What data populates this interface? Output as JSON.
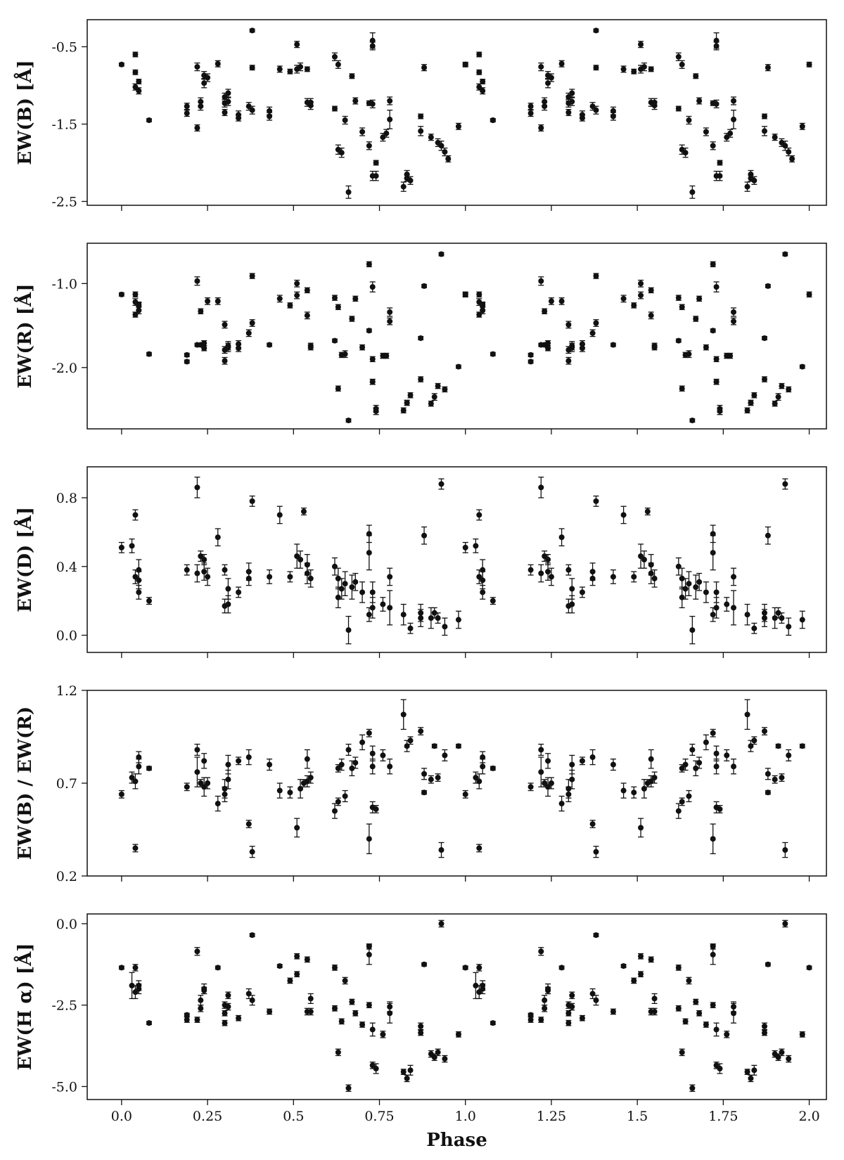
{
  "chart_data": {
    "type": "scatter",
    "xlabel": "Phase",
    "xlim": [
      -0.1,
      2.05
    ],
    "xticks": [
      0.0,
      0.25,
      0.5,
      0.75,
      1.0,
      1.25,
      1.5,
      1.75,
      2.0
    ],
    "xtick_labels": [
      "0.0",
      "0.25",
      "0.5",
      "0.75",
      "1.0",
      "1.25",
      "1.5",
      "1.75",
      "2.0"
    ],
    "repeat_period": 1.0,
    "panels": [
      {
        "ylabel": "EW(B) [Å]",
        "ylim": [
          -2.55,
          -0.15
        ],
        "yticks": [
          -0.5,
          -1.5,
          -2.5
        ],
        "ytick_labels": [
          "-0.5",
          "-1.5",
          "-2.5"
        ],
        "x": [
          0.0,
          0.04,
          0.04,
          0.04,
          0.05,
          0.05,
          0.08,
          0.19,
          0.19,
          0.22,
          0.22,
          0.23,
          0.23,
          0.24,
          0.24,
          0.25,
          0.28,
          0.3,
          0.3,
          0.3,
          0.31,
          0.31,
          0.34,
          0.34,
          0.38,
          0.38,
          0.37,
          0.38,
          0.43,
          0.43,
          0.46,
          0.49,
          0.51,
          0.51,
          0.52,
          0.54,
          0.54,
          0.55,
          0.55,
          0.62,
          0.62,
          0.63,
          0.63,
          0.64,
          0.65,
          0.66,
          0.67,
          0.68,
          0.7,
          0.72,
          0.72,
          0.73,
          0.73,
          0.73,
          0.73,
          0.74,
          0.74,
          0.76,
          0.77,
          0.78,
          0.78,
          0.82,
          0.83,
          0.83,
          0.84,
          0.87,
          0.87,
          0.88,
          0.9,
          0.92,
          0.93,
          0.94,
          0.95,
          0.98,
          1.0,
          1.08
        ],
        "y": [
          -0.73,
          -0.6,
          -0.83,
          -1.02,
          -0.95,
          -1.07,
          -1.45,
          -1.27,
          -1.36,
          -0.76,
          -1.55,
          -1.21,
          -1.27,
          -0.87,
          -0.97,
          -0.9,
          -0.72,
          -1.15,
          -1.23,
          -1.35,
          -1.1,
          -1.21,
          -1.38,
          -1.42,
          -0.29,
          -0.77,
          -1.27,
          -1.32,
          -1.33,
          -1.4,
          -0.79,
          -0.82,
          -0.79,
          -0.47,
          -0.76,
          -0.79,
          -1.22,
          -1.26,
          -1.22,
          -1.3,
          -0.63,
          -0.73,
          -1.83,
          -1.87,
          -1.45,
          -2.38,
          -0.88,
          -1.2,
          -1.6,
          -1.78,
          -1.23,
          -0.42,
          -0.49,
          -1.24,
          -2.17,
          -2.17,
          -2.0,
          -1.67,
          -1.62,
          -1.2,
          -1.44,
          -2.31,
          -2.2,
          -2.15,
          -2.23,
          -1.59,
          -1.4,
          -0.77,
          -1.67,
          -1.74,
          -1.78,
          -1.86,
          -1.95,
          -1.53,
          -0.73,
          -1.45
        ],
        "err": [
          0.02,
          0.03,
          0.03,
          0.04,
          0.03,
          0.04,
          0.02,
          0.04,
          0.04,
          0.05,
          0.04,
          0.05,
          0.05,
          0.05,
          0.06,
          0.05,
          0.04,
          0.05,
          0.05,
          0.04,
          0.05,
          0.05,
          0.05,
          0.04,
          0.02,
          0.03,
          0.05,
          0.05,
          0.05,
          0.05,
          0.04,
          0.03,
          0.05,
          0.04,
          0.05,
          0.03,
          0.05,
          0.05,
          0.05,
          0.03,
          0.05,
          0.05,
          0.06,
          0.06,
          0.05,
          0.08,
          0.03,
          0.04,
          0.05,
          0.05,
          0.03,
          0.1,
          0.05,
          0.05,
          0.06,
          0.06,
          0.03,
          0.05,
          0.05,
          0.05,
          0.12,
          0.06,
          0.04,
          0.05,
          0.05,
          0.06,
          0.03,
          0.04,
          0.04,
          0.05,
          0.06,
          0.05,
          0.04,
          0.04,
          0.03,
          0.02
        ]
      },
      {
        "ylabel": "EW(R) [Å]",
        "ylim": [
          -2.73,
          -0.52
        ],
        "yticks": [
          -1.0,
          -2.0
        ],
        "ytick_labels": [
          "-1.0",
          "-2.0"
        ],
        "x": [
          0.0,
          0.04,
          0.04,
          0.04,
          0.05,
          0.05,
          0.05,
          0.08,
          0.19,
          0.19,
          0.22,
          0.22,
          0.23,
          0.23,
          0.24,
          0.24,
          0.25,
          0.28,
          0.3,
          0.3,
          0.3,
          0.31,
          0.31,
          0.34,
          0.34,
          0.37,
          0.38,
          0.38,
          0.43,
          0.46,
          0.49,
          0.51,
          0.51,
          0.54,
          0.54,
          0.55,
          0.55,
          0.62,
          0.62,
          0.63,
          0.63,
          0.64,
          0.65,
          0.66,
          0.67,
          0.68,
          0.7,
          0.72,
          0.72,
          0.73,
          0.73,
          0.73,
          0.73,
          0.74,
          0.74,
          0.76,
          0.77,
          0.78,
          0.78,
          0.82,
          0.83,
          0.83,
          0.84,
          0.87,
          0.87,
          0.88,
          0.9,
          0.91,
          0.92,
          0.93,
          0.94,
          0.98,
          1.0
        ],
        "y": [
          -1.13,
          -1.37,
          -1.13,
          -1.22,
          -1.27,
          -1.25,
          -1.32,
          -1.84,
          -1.85,
          -1.93,
          -0.97,
          -1.73,
          -1.73,
          -1.33,
          -1.77,
          -1.71,
          -1.21,
          -1.21,
          -1.49,
          -1.79,
          -1.92,
          -1.76,
          -1.74,
          -1.77,
          -1.72,
          -1.59,
          -1.47,
          -0.91,
          -1.73,
          -1.18,
          -1.26,
          -1.14,
          -1.0,
          -1.08,
          -1.38,
          -1.74,
          -1.76,
          -1.68,
          -1.17,
          -1.28,
          -2.25,
          -1.85,
          -1.84,
          -2.63,
          -1.42,
          -1.18,
          -1.76,
          -1.56,
          -0.77,
          -1.04,
          -1.9,
          -2.17,
          -2.17,
          -2.52,
          -2.49,
          -1.86,
          -1.86,
          -1.34,
          -1.45,
          -2.51,
          -2.42,
          -2.42,
          -2.33,
          -2.14,
          -1.65,
          -1.03,
          -2.43,
          -2.35,
          -2.22,
          -0.65,
          -2.26,
          -1.99,
          -1.13
        ],
        "err": [
          0.02,
          0.03,
          0.03,
          0.04,
          0.04,
          0.03,
          0.04,
          0.02,
          0.02,
          0.02,
          0.05,
          0.02,
          0.02,
          0.03,
          0.03,
          0.03,
          0.04,
          0.04,
          0.04,
          0.04,
          0.04,
          0.05,
          0.05,
          0.04,
          0.04,
          0.04,
          0.04,
          0.03,
          0.02,
          0.04,
          0.03,
          0.04,
          0.04,
          0.03,
          0.04,
          0.03,
          0.03,
          0.02,
          0.03,
          0.03,
          0.03,
          0.03,
          0.04,
          0.02,
          0.03,
          0.03,
          0.03,
          0.02,
          0.03,
          0.06,
          0.03,
          0.03,
          0.03,
          0.04,
          0.04,
          0.03,
          0.03,
          0.05,
          0.04,
          0.03,
          0.03,
          0.03,
          0.03,
          0.03,
          0.02,
          0.02,
          0.03,
          0.04,
          0.03,
          0.02,
          0.03,
          0.02,
          0.03
        ]
      },
      {
        "ylabel": "EW(D) [Å]",
        "ylim": [
          -0.1,
          0.98
        ],
        "yticks": [
          0.0,
          0.4,
          0.8
        ],
        "ytick_labels": [
          "0.0",
          "0.4",
          "0.8"
        ],
        "x": [
          0.0,
          0.03,
          0.04,
          0.04,
          0.05,
          0.05,
          0.05,
          0.08,
          0.19,
          0.22,
          0.22,
          0.23,
          0.24,
          0.24,
          0.25,
          0.28,
          0.3,
          0.3,
          0.31,
          0.31,
          0.34,
          0.37,
          0.37,
          0.38,
          0.43,
          0.46,
          0.49,
          0.51,
          0.52,
          0.53,
          0.54,
          0.54,
          0.55,
          0.62,
          0.63,
          0.63,
          0.64,
          0.65,
          0.66,
          0.67,
          0.68,
          0.7,
          0.72,
          0.72,
          0.72,
          0.73,
          0.73,
          0.76,
          0.78,
          0.78,
          0.82,
          0.84,
          0.87,
          0.87,
          0.88,
          0.9,
          0.91,
          0.92,
          0.93,
          0.94,
          0.98
        ],
        "y": [
          0.51,
          0.52,
          0.7,
          0.34,
          0.38,
          0.32,
          0.25,
          0.2,
          0.38,
          0.36,
          0.86,
          0.46,
          0.44,
          0.37,
          0.34,
          0.57,
          0.38,
          0.17,
          0.27,
          0.18,
          0.25,
          0.33,
          0.37,
          0.78,
          0.34,
          0.7,
          0.34,
          0.46,
          0.44,
          0.72,
          0.36,
          0.41,
          0.33,
          0.4,
          0.33,
          0.22,
          0.27,
          0.3,
          0.03,
          0.28,
          0.31,
          0.25,
          0.59,
          0.48,
          0.12,
          0.25,
          0.16,
          0.18,
          0.34,
          0.16,
          0.12,
          0.04,
          0.1,
          0.13,
          0.58,
          0.1,
          0.13,
          0.1,
          0.88,
          0.05,
          0.09
        ],
        "err": [
          0.03,
          0.04,
          0.03,
          0.04,
          0.06,
          0.05,
          0.04,
          0.02,
          0.03,
          0.05,
          0.06,
          0.03,
          0.03,
          0.05,
          0.05,
          0.05,
          0.03,
          0.04,
          0.06,
          0.05,
          0.03,
          0.04,
          0.05,
          0.03,
          0.04,
          0.05,
          0.03,
          0.07,
          0.05,
          0.02,
          0.06,
          0.06,
          0.05,
          0.05,
          0.06,
          0.06,
          0.06,
          0.07,
          0.08,
          0.07,
          0.05,
          0.06,
          0.05,
          0.1,
          0.04,
          0.06,
          0.06,
          0.04,
          0.05,
          0.1,
          0.06,
          0.03,
          0.05,
          0.05,
          0.05,
          0.06,
          0.03,
          0.03,
          0.03,
          0.05,
          0.05
        ]
      },
      {
        "ylabel": "EW(B) / EW(R)",
        "ylim": [
          0.2,
          1.2
        ],
        "yticks": [
          0.2,
          0.7,
          1.2
        ],
        "ytick_labels": [
          "0.2",
          "0.7",
          "1.2"
        ],
        "x": [
          0.0,
          0.03,
          0.04,
          0.04,
          0.05,
          0.05,
          0.08,
          0.19,
          0.22,
          0.22,
          0.23,
          0.24,
          0.24,
          0.25,
          0.28,
          0.3,
          0.3,
          0.31,
          0.31,
          0.34,
          0.37,
          0.37,
          0.38,
          0.43,
          0.46,
          0.49,
          0.51,
          0.52,
          0.53,
          0.54,
          0.54,
          0.55,
          0.62,
          0.63,
          0.63,
          0.64,
          0.65,
          0.66,
          0.67,
          0.68,
          0.7,
          0.72,
          0.72,
          0.73,
          0.73,
          0.73,
          0.74,
          0.76,
          0.78,
          0.82,
          0.83,
          0.84,
          0.87,
          0.88,
          0.88,
          0.9,
          0.91,
          0.92,
          0.93,
          0.94,
          0.98
        ],
        "y": [
          0.64,
          0.73,
          0.35,
          0.71,
          0.79,
          0.84,
          0.78,
          0.68,
          0.88,
          0.76,
          0.7,
          0.82,
          0.68,
          0.7,
          0.59,
          0.64,
          0.67,
          0.8,
          0.72,
          0.82,
          0.48,
          0.84,
          0.33,
          0.8,
          0.66,
          0.65,
          0.46,
          0.67,
          0.7,
          0.83,
          0.71,
          0.73,
          0.55,
          0.78,
          0.6,
          0.8,
          0.63,
          0.88,
          0.78,
          0.81,
          0.92,
          0.97,
          0.4,
          0.57,
          0.86,
          0.79,
          0.56,
          0.85,
          0.79,
          1.07,
          0.9,
          0.93,
          0.98,
          0.65,
          0.75,
          0.72,
          0.9,
          0.73,
          0.34,
          0.85,
          0.9
        ],
        "err": [
          0.02,
          0.03,
          0.02,
          0.04,
          0.04,
          0.03,
          0.01,
          0.02,
          0.03,
          0.08,
          0.02,
          0.04,
          0.05,
          0.03,
          0.04,
          0.04,
          0.05,
          0.05,
          0.05,
          0.02,
          0.02,
          0.04,
          0.03,
          0.03,
          0.04,
          0.03,
          0.05,
          0.05,
          0.02,
          0.05,
          0.03,
          0.03,
          0.04,
          0.02,
          0.02,
          0.03,
          0.03,
          0.03,
          0.04,
          0.03,
          0.04,
          0.02,
          0.08,
          0.03,
          0.04,
          0.04,
          0.02,
          0.03,
          0.04,
          0.08,
          0.03,
          0.02,
          0.02,
          0.01,
          0.03,
          0.02,
          0.01,
          0.02,
          0.04,
          0.03,
          0.01
        ]
      },
      {
        "ylabel": "EW(H α) [Å]",
        "ylim": [
          -5.4,
          0.3
        ],
        "yticks": [
          0.0,
          -2.5,
          -5.0
        ],
        "ytick_labels": [
          "0.0",
          "-2.5",
          "-5.0"
        ],
        "x": [
          0.0,
          0.03,
          0.04,
          0.04,
          0.05,
          0.05,
          0.08,
          0.19,
          0.19,
          0.22,
          0.22,
          0.23,
          0.23,
          0.24,
          0.24,
          0.28,
          0.3,
          0.3,
          0.3,
          0.31,
          0.31,
          0.34,
          0.37,
          0.38,
          0.38,
          0.43,
          0.46,
          0.49,
          0.51,
          0.51,
          0.54,
          0.54,
          0.55,
          0.55,
          0.62,
          0.62,
          0.63,
          0.64,
          0.65,
          0.66,
          0.67,
          0.68,
          0.7,
          0.72,
          0.72,
          0.72,
          0.73,
          0.73,
          0.74,
          0.76,
          0.78,
          0.78,
          0.82,
          0.83,
          0.84,
          0.87,
          0.87,
          0.88,
          0.9,
          0.91,
          0.92,
          0.93,
          0.94,
          0.98,
          1.0
        ],
        "y": [
          -1.35,
          -1.9,
          -1.35,
          -2.1,
          -2.0,
          -1.9,
          -3.05,
          -2.8,
          -2.95,
          -0.85,
          -2.95,
          -2.6,
          -2.35,
          -2.05,
          -2.0,
          -1.35,
          -2.5,
          -3.05,
          -2.75,
          -2.2,
          -2.55,
          -2.9,
          -2.15,
          -0.35,
          -2.35,
          -2.7,
          -1.3,
          -1.75,
          -1.55,
          -1.0,
          -1.1,
          -2.7,
          -2.7,
          -2.3,
          -2.6,
          -1.35,
          -3.95,
          -3.0,
          -1.75,
          -5.05,
          -2.4,
          -2.75,
          -3.1,
          -0.7,
          -0.95,
          -2.5,
          -4.35,
          -3.25,
          -4.45,
          -3.4,
          -2.55,
          -2.75,
          -4.55,
          -4.75,
          -4.5,
          -3.15,
          -3.35,
          -1.25,
          -4.0,
          -4.1,
          -3.95,
          0.0,
          -4.15,
          -3.4,
          -1.35
        ],
        "err": [
          0.05,
          0.4,
          0.1,
          0.2,
          0.15,
          0.15,
          0.05,
          0.05,
          0.08,
          0.12,
          0.08,
          0.1,
          0.15,
          0.1,
          0.15,
          0.05,
          0.1,
          0.08,
          0.08,
          0.1,
          0.1,
          0.08,
          0.15,
          0.05,
          0.15,
          0.08,
          0.05,
          0.08,
          0.08,
          0.08,
          0.08,
          0.1,
          0.1,
          0.15,
          0.08,
          0.08,
          0.1,
          0.08,
          0.1,
          0.1,
          0.08,
          0.08,
          0.08,
          0.08,
          0.3,
          0.08,
          0.1,
          0.2,
          0.15,
          0.1,
          0.15,
          0.3,
          0.08,
          0.1,
          0.15,
          0.1,
          0.08,
          0.05,
          0.1,
          0.1,
          0.1,
          0.1,
          0.1,
          0.08,
          0.05
        ]
      }
    ]
  }
}
